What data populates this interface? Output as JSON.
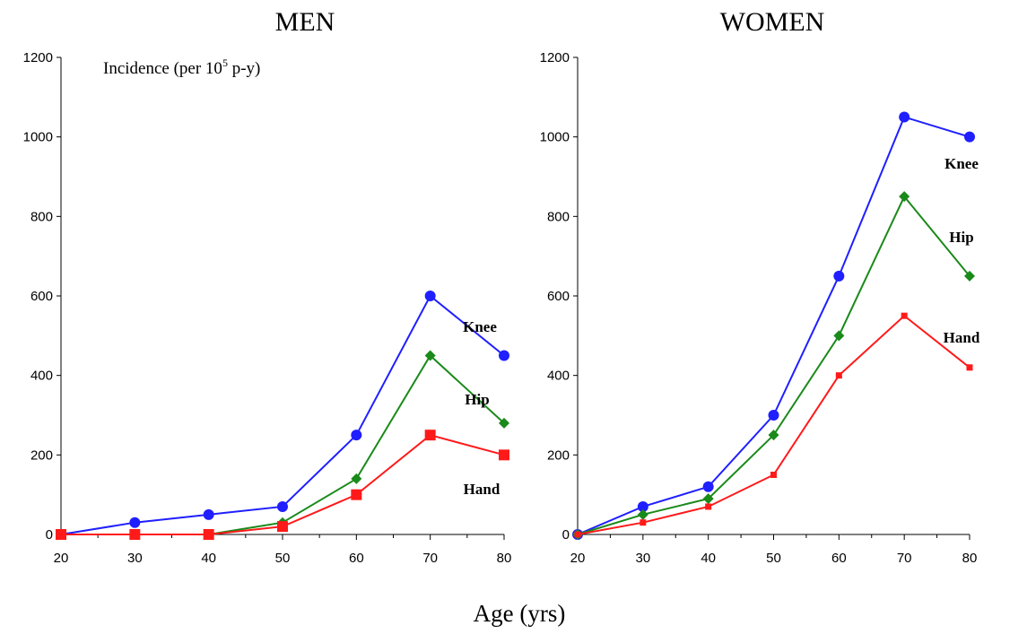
{
  "chart_data": [
    {
      "type": "line",
      "title": "MEN",
      "x": [
        20,
        30,
        40,
        50,
        60,
        70,
        80
      ],
      "xlim": [
        20,
        80
      ],
      "ylim": [
        0,
        1200
      ],
      "yticks": [
        0,
        200,
        400,
        600,
        800,
        1000,
        1200
      ],
      "xticks": [
        20,
        30,
        40,
        50,
        60,
        70,
        80
      ],
      "annotation": "Incidence (per 10",
      "annotation_sup": "5",
      "annotation_tail": " p-y)",
      "series": [
        {
          "name": "Knee",
          "color": "#1f1fff",
          "marker": "circle",
          "values": [
            0,
            30,
            50,
            70,
            250,
            600,
            450
          ]
        },
        {
          "name": "Hip",
          "color": "#1a8a1a",
          "marker": "diamond",
          "values": [
            0,
            0,
            0,
            30,
            140,
            450,
            280
          ]
        },
        {
          "name": "Hand",
          "color": "#ff1a1a",
          "marker": "square",
          "values": [
            0,
            0,
            0,
            20,
            100,
            250,
            200
          ]
        }
      ]
    },
    {
      "type": "line",
      "title": "WOMEN",
      "x": [
        20,
        30,
        40,
        50,
        60,
        70,
        80
      ],
      "xlim": [
        20,
        80
      ],
      "ylim": [
        0,
        1200
      ],
      "yticks": [
        0,
        200,
        400,
        600,
        800,
        1000,
        1200
      ],
      "xticks": [
        20,
        30,
        40,
        50,
        60,
        70,
        80
      ],
      "series": [
        {
          "name": "Knee",
          "color": "#1f1fff",
          "marker": "circle",
          "values": [
            0,
            70,
            120,
            300,
            650,
            1050,
            1000
          ]
        },
        {
          "name": "Hip",
          "color": "#1a8a1a",
          "marker": "diamond",
          "values": [
            0,
            50,
            90,
            250,
            500,
            850,
            650
          ]
        },
        {
          "name": "Hand",
          "color": "#ff1a1a",
          "marker": "square",
          "values": [
            0,
            30,
            70,
            150,
            400,
            550,
            420
          ]
        }
      ]
    }
  ],
  "xlabel": "Age (yrs)"
}
